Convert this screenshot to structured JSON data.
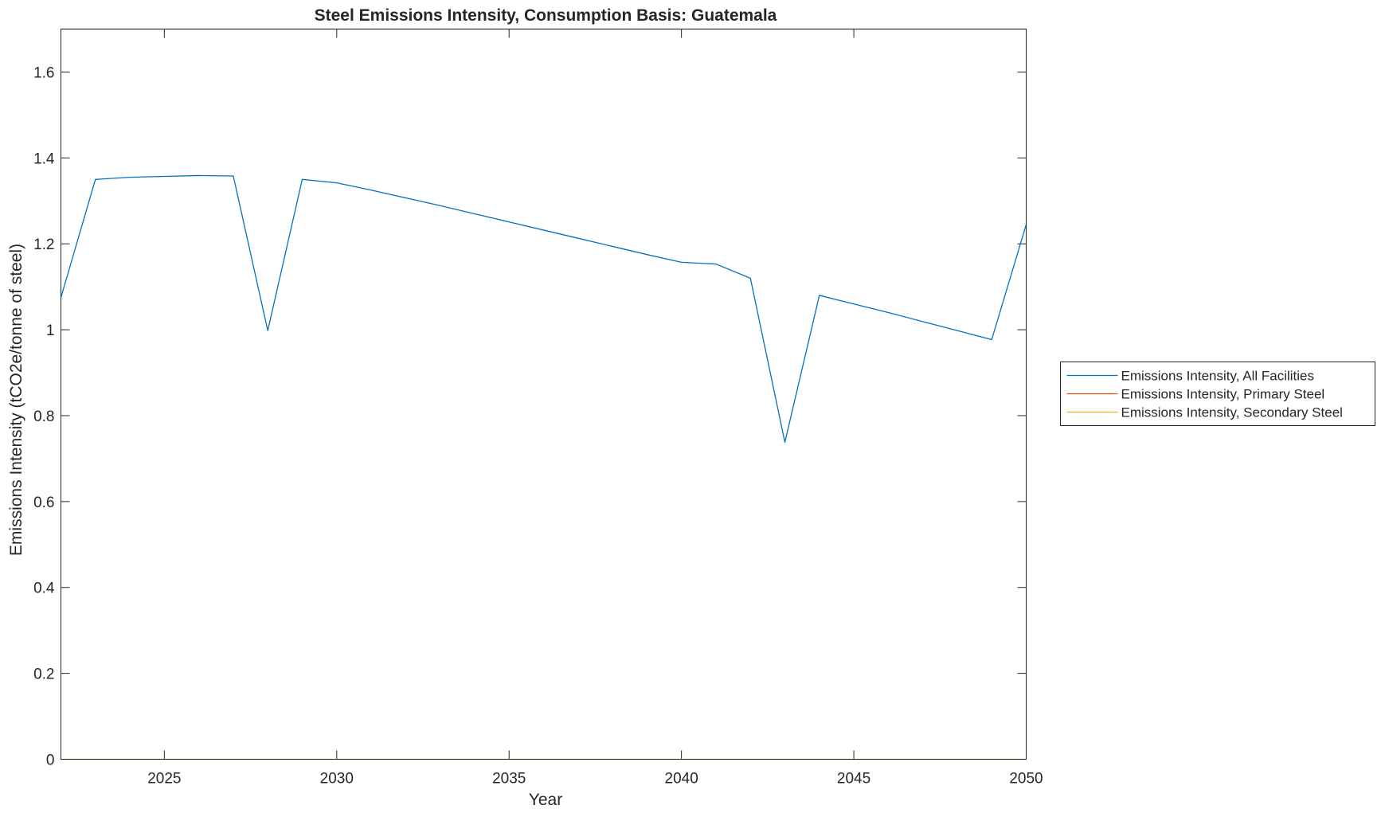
{
  "chart_data": {
    "type": "line",
    "title": "Steel Emissions Intensity, Consumption Basis: Guatemala",
    "xlabel": "Year",
    "ylabel": "Emissions Intensity (tCO2e/tonne of steel)",
    "xlim": [
      2022,
      2050
    ],
    "ylim": [
      0,
      1.7
    ],
    "xticks": [
      2025,
      2030,
      2035,
      2040,
      2045,
      2050
    ],
    "yticks": [
      0,
      0.2,
      0.4,
      0.6,
      0.8,
      1,
      1.2,
      1.4,
      1.6
    ],
    "x": [
      2022,
      2023,
      2024,
      2025,
      2026,
      2027,
      2028,
      2029,
      2030,
      2031,
      2032,
      2033,
      2034,
      2035,
      2036,
      2037,
      2038,
      2039,
      2040,
      2041,
      2042,
      2043,
      2044,
      2045,
      2046,
      2047,
      2048,
      2049,
      2050
    ],
    "series": [
      {
        "name": "Emissions Intensity, All Facilities",
        "color": "#0072BD",
        "values": [
          1.075,
          1.35,
          1.355,
          1.357,
          1.359,
          1.358,
          0.998,
          1.35,
          1.342,
          1.325,
          1.307,
          1.289,
          1.27,
          1.251,
          1.232,
          1.213,
          1.194,
          1.175,
          1.157,
          1.153,
          1.12,
          0.738,
          1.08,
          1.06,
          1.04,
          1.019,
          0.998,
          0.977,
          1.245
        ]
      },
      {
        "name": "Emissions Intensity, Primary Steel",
        "color": "#D95319",
        "values": [
          1.7,
          1.7,
          1.7,
          1.7,
          1.7,
          1.7,
          1.7,
          1.7,
          1.7,
          1.7,
          1.7,
          1.7,
          1.7,
          1.7,
          1.7,
          1.7,
          1.7,
          1.7,
          1.7,
          1.7,
          1.7,
          1.7,
          1.7,
          1.7,
          1.7,
          1.7,
          1.7,
          1.7,
          1.7
        ]
      },
      {
        "name": "Emissions Intensity, Secondary Steel",
        "color": "#EDB120",
        "values": [
          0,
          0,
          0,
          0,
          0,
          0,
          0,
          0,
          0,
          0,
          0,
          0,
          0,
          0,
          0,
          0,
          0,
          0,
          0,
          0,
          0,
          0,
          0,
          0,
          0,
          0,
          0,
          0,
          0
        ]
      }
    ],
    "grid": false,
    "legend_position": "outside-right"
  }
}
